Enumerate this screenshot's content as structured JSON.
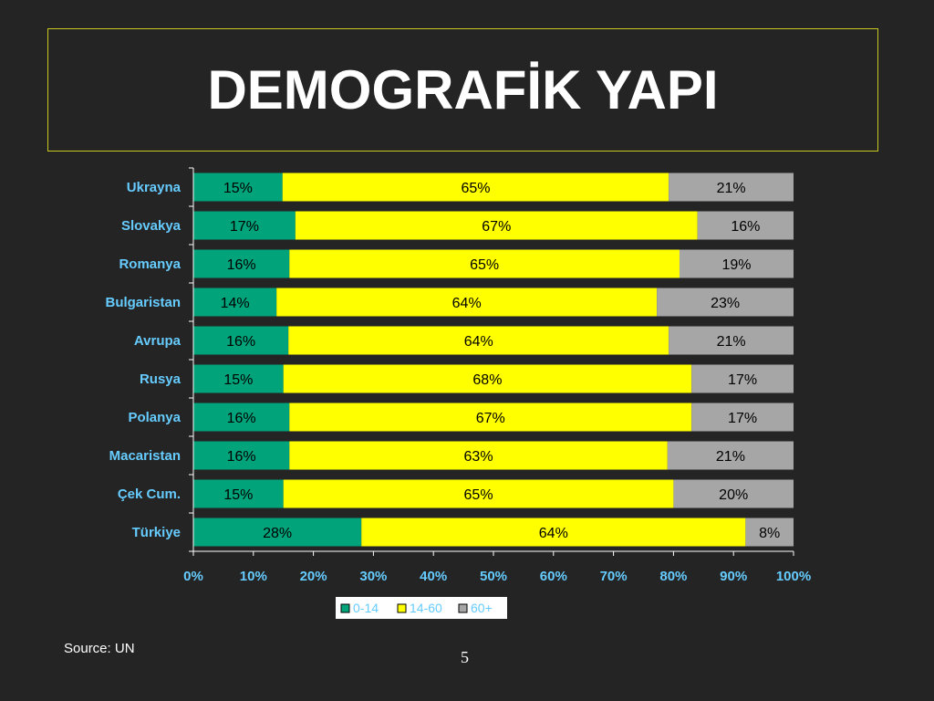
{
  "slide": {
    "title": "DEMOGRAFİK YAPI",
    "source": "Source: UN",
    "page_number": "5"
  },
  "colors": {
    "background": "#242424",
    "title_border": "#c8c820",
    "label": "#66ccff",
    "axis": "#ffffff",
    "series": [
      "#00a37a",
      "#ffff00",
      "#a6a6a6"
    ]
  },
  "chart_data": {
    "type": "bar",
    "orientation": "horizontal",
    "stacked": true,
    "percent_stacked": true,
    "categories": [
      "Ukrayna",
      "Slovakya",
      "Romanya",
      "Bulgaristan",
      "Avrupa",
      "Rusya",
      "Polanya",
      "Macaristan",
      "Çek Cum.",
      "Türkiye"
    ],
    "series": [
      {
        "name": "0-14",
        "values": [
          15,
          17,
          16,
          14,
          16,
          15,
          16,
          16,
          15,
          28
        ],
        "labels": [
          "15%",
          "17%",
          "16%",
          "14%",
          "16%",
          "15%",
          "16%",
          "16%",
          "15%",
          "28%"
        ]
      },
      {
        "name": "14-60",
        "values": [
          65,
          67,
          65,
          64,
          64,
          68,
          67,
          63,
          65,
          64
        ],
        "labels": [
          "65%",
          "67%",
          "65%",
          "64%",
          "64%",
          "68%",
          "67%",
          "63%",
          "65%",
          "64%"
        ]
      },
      {
        "name": "60+",
        "values": [
          21,
          16,
          19,
          23,
          21,
          17,
          17,
          21,
          20,
          8
        ],
        "labels": [
          "21%",
          "16%",
          "19%",
          "23%",
          "21%",
          "17%",
          "17%",
          "21%",
          "20%",
          "8%"
        ]
      }
    ],
    "x_ticks": [
      "0%",
      "10%",
      "20%",
      "30%",
      "40%",
      "50%",
      "60%",
      "70%",
      "80%",
      "90%",
      "100%"
    ],
    "xlim": [
      0,
      100
    ],
    "legend": "bottom",
    "grid": false
  }
}
